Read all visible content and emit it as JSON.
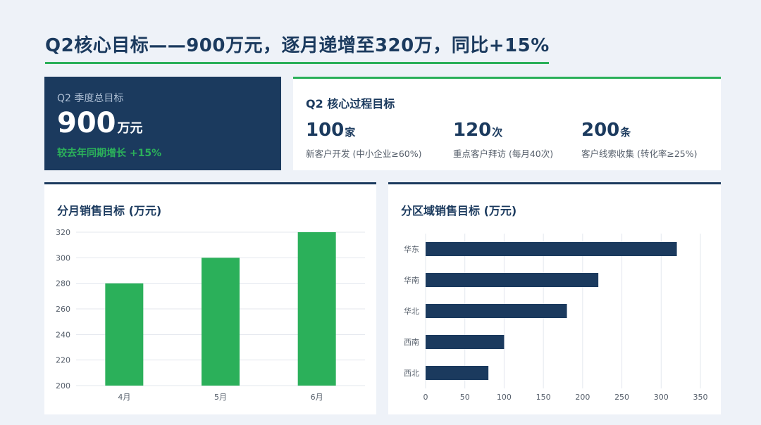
{
  "page": {
    "title": "Q2核心目标——900万元，逐月递增至320万，同比+15%"
  },
  "kpi": {
    "label": "Q2 季度总目标",
    "value": "900",
    "unit": "万元",
    "growth": "较去年同期增长 +15%"
  },
  "process": {
    "title": "Q2 核心过程目标",
    "metrics": [
      {
        "value": "100",
        "unit": "家",
        "desc": "新客户开发 (中小企业≥60%)"
      },
      {
        "value": "120",
        "unit": "次",
        "desc": "重点客户拜访 (每月40次)"
      },
      {
        "value": "200",
        "unit": "条",
        "desc": "客户线索收集 (转化率≥25%)"
      }
    ]
  },
  "colors": {
    "navy": "#1b3a5e",
    "green": "#2bb05a"
  },
  "chart_data": [
    {
      "type": "bar",
      "title": "分月销售目标 (万元)",
      "categories": [
        "4月",
        "5月",
        "6月"
      ],
      "values": [
        280,
        300,
        320
      ],
      "ylim": [
        200,
        320
      ],
      "yticks": [
        200,
        220,
        240,
        260,
        280,
        300,
        320
      ],
      "grid": true,
      "color": "#2bb05a"
    },
    {
      "type": "bar",
      "orientation": "horizontal",
      "title": "分区域销售目标 (万元)",
      "categories": [
        "华东",
        "华南",
        "华北",
        "西南",
        "西北"
      ],
      "values": [
        320,
        220,
        180,
        100,
        80
      ],
      "xlim": [
        0,
        350
      ],
      "xticks": [
        0,
        50,
        100,
        150,
        200,
        250,
        300,
        350
      ],
      "grid": true,
      "color": "#1b3a5e"
    }
  ]
}
